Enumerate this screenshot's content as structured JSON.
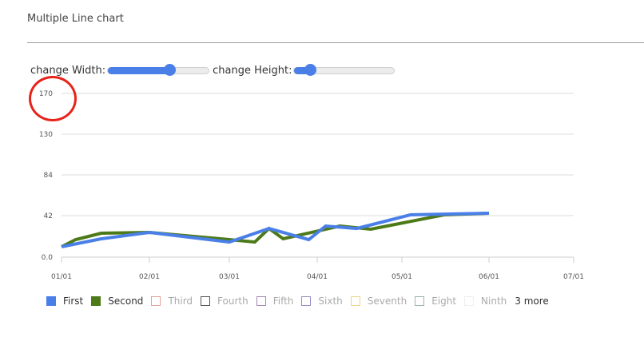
{
  "header": {
    "title": "Multiple Line chart"
  },
  "controls": {
    "width_label": "change Width:",
    "width_slider_percent": 61,
    "height_label": "change Height:",
    "height_slider_percent": 16,
    "accent_color": "#4a7fe8"
  },
  "annotation": {
    "shape": "circle",
    "color": "#e8231a",
    "target": "y-axis-label-170"
  },
  "legend": {
    "items": [
      {
        "label": "First",
        "color": "#4a7fe8",
        "filled": true,
        "text_color": "#333333"
      },
      {
        "label": "Second",
        "color": "#4d7a19",
        "filled": true,
        "text_color": "#333333"
      },
      {
        "label": "Third",
        "color": "#e0a39a",
        "filled": false,
        "text_color": "#aaaaaa"
      },
      {
        "label": "Fourth",
        "color": "#555555",
        "filled": false,
        "text_color": "#aaaaaa"
      },
      {
        "label": "Fifth",
        "color": "#a587b4",
        "filled": false,
        "text_color": "#aaaaaa"
      },
      {
        "label": "Sixth",
        "color": "#9a8cc4",
        "filled": false,
        "text_color": "#aaaaaa"
      },
      {
        "label": "Seventh",
        "color": "#ecd58a",
        "filled": false,
        "text_color": "#aaaaaa"
      },
      {
        "label": "Eight",
        "color": "#9ab3a8",
        "filled": false,
        "text_color": "#aaaaaa"
      },
      {
        "label": "Ninth",
        "color": "#eeeeee",
        "filled": false,
        "text_color": "#aaaaaa"
      }
    ],
    "more_label": "3 more"
  },
  "chart_data": {
    "type": "line",
    "title": "Multiple Line chart",
    "xlabel": "",
    "ylabel": "",
    "x_ticks": [
      "01/01",
      "02/01",
      "03/01",
      "04/01",
      "05/01",
      "06/01",
      "07/01"
    ],
    "y_ticks": [
      "0.0",
      "42",
      "84",
      "130",
      "170"
    ],
    "ylim": [
      0,
      170
    ],
    "grid": true,
    "legend_position": "bottom",
    "series": [
      {
        "name": "First",
        "color": "#4a7fe8",
        "points": [
          {
            "x": "01/01",
            "y": 10.5
          },
          {
            "x": "01/15",
            "y": 18.6
          },
          {
            "x": "02/01",
            "y": 25
          },
          {
            "x": "03/01",
            "y": 15.3
          },
          {
            "x": "03/15",
            "y": 29
          },
          {
            "x": "03/29",
            "y": 17.8
          },
          {
            "x": "04/04",
            "y": 31.5
          },
          {
            "x": "04/15",
            "y": 29
          },
          {
            "x": "05/04",
            "y": 42.8
          },
          {
            "x": "06/01",
            "y": 44.4
          }
        ]
      },
      {
        "name": "Second",
        "color": "#4d7a19",
        "points": [
          {
            "x": "01/01",
            "y": 10.5
          },
          {
            "x": "01/06",
            "y": 17.8
          },
          {
            "x": "01/15",
            "y": 24.2
          },
          {
            "x": "02/01",
            "y": 25
          },
          {
            "x": "03/01",
            "y": 17.8
          },
          {
            "x": "03/10",
            "y": 15.3
          },
          {
            "x": "03/15",
            "y": 29
          },
          {
            "x": "03/20",
            "y": 18.6
          },
          {
            "x": "04/09",
            "y": 31.5
          },
          {
            "x": "04/20",
            "y": 28.3
          },
          {
            "x": "05/16",
            "y": 42.8
          },
          {
            "x": "06/01",
            "y": 44.4
          }
        ]
      }
    ]
  }
}
